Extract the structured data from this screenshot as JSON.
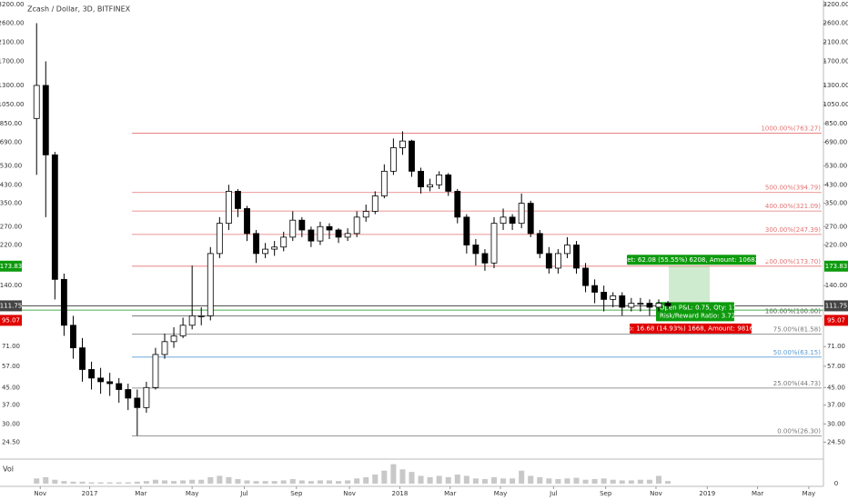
{
  "chart_data": {
    "type": "candlestick",
    "title": "Zcash / Dollar, 3D, BITFINEX",
    "log_scale": true,
    "ylim": [
      20.7,
      3365
    ],
    "xlim": [
      -4,
      86
    ],
    "yticks": [
      {
        "value": 3200,
        "label": "3200.00"
      },
      {
        "value": 2600,
        "label": "2600.00"
      },
      {
        "value": 2100,
        "label": "2100.00"
      },
      {
        "value": 1700,
        "label": "1700.00"
      },
      {
        "value": 1300,
        "label": "1300.00"
      },
      {
        "value": 1050,
        "label": "1050.00"
      },
      {
        "value": 850,
        "label": "850.00"
      },
      {
        "value": 690,
        "label": "690.00"
      },
      {
        "value": 530,
        "label": "530.00"
      },
      {
        "value": 430,
        "label": "430.00"
      },
      {
        "value": 350,
        "label": "350.00"
      },
      {
        "value": 270,
        "label": "270.00"
      },
      {
        "value": 220,
        "label": "220.00"
      },
      {
        "value": 140,
        "label": "140.00"
      },
      {
        "value": 71,
        "label": "71.00"
      },
      {
        "value": 57,
        "label": "57.00"
      },
      {
        "value": 45,
        "label": "45.00"
      },
      {
        "value": 37,
        "label": "37.00"
      },
      {
        "value": 30,
        "label": "30.00"
      },
      {
        "value": 24.5,
        "label": "24.50"
      }
    ],
    "xticks": [
      {
        "value": 0.4,
        "label": "Nov"
      },
      {
        "value": 5.8,
        "label": "2017"
      },
      {
        "value": 11.4,
        "label": "Mar"
      },
      {
        "value": 17,
        "label": "May"
      },
      {
        "value": 22.7,
        "label": "Jul"
      },
      {
        "value": 28.4,
        "label": "Sep"
      },
      {
        "value": 34.2,
        "label": "Nov"
      },
      {
        "value": 39.7,
        "label": "2018"
      },
      {
        "value": 45.2,
        "label": "Mar"
      },
      {
        "value": 50.7,
        "label": "May"
      },
      {
        "value": 56.5,
        "label": "Jul"
      },
      {
        "value": 62.2,
        "label": "Sep"
      },
      {
        "value": 67.7,
        "label": "Nov"
      },
      {
        "value": 73.3,
        "label": "2019"
      },
      {
        "value": 78.8,
        "label": "Mar"
      },
      {
        "value": 84.4,
        "label": "May"
      }
    ],
    "up_color": "#ffffff",
    "down_color": "#000000",
    "open": [
      900,
      1300,
      600,
      150,
      90,
      70,
      55,
      50,
      48,
      47,
      44,
      40,
      36,
      45,
      65,
      75,
      80,
      90,
      100,
      100,
      200,
      280,
      400,
      330,
      250,
      200,
      210,
      215,
      240,
      290,
      260,
      230,
      270,
      260,
      240,
      250,
      300,
      320,
      380,
      500,
      650,
      700,
      500,
      420,
      430,
      480,
      400,
      300,
      220,
      200,
      180,
      280,
      300,
      280,
      350,
      250,
      200,
      170,
      200,
      220,
      170,
      140,
      130,
      120,
      125,
      110,
      115,
      115,
      110,
      115
    ],
    "high": [
      2600,
      1700,
      620,
      160,
      100,
      78,
      60,
      56,
      53,
      50,
      47,
      44,
      48,
      70,
      82,
      88,
      98,
      175,
      110,
      215,
      300,
      430,
      410,
      340,
      260,
      225,
      230,
      255,
      320,
      300,
      270,
      285,
      280,
      265,
      265,
      320,
      345,
      400,
      540,
      720,
      780,
      710,
      520,
      460,
      500,
      490,
      410,
      310,
      235,
      210,
      300,
      330,
      310,
      390,
      360,
      260,
      215,
      210,
      240,
      230,
      180,
      150,
      140,
      130,
      130,
      122,
      122,
      120,
      120,
      118
    ],
    "low": [
      480,
      300,
      120,
      80,
      62,
      48,
      44,
      42,
      41,
      38,
      35,
      26.3,
      34,
      44,
      62,
      70,
      78,
      86,
      90,
      95,
      190,
      260,
      300,
      230,
      180,
      190,
      195,
      205,
      230,
      240,
      215,
      220,
      235,
      225,
      230,
      240,
      285,
      310,
      370,
      480,
      600,
      470,
      390,
      400,
      410,
      380,
      280,
      200,
      175,
      165,
      170,
      260,
      260,
      265,
      240,
      190,
      160,
      160,
      190,
      160,
      130,
      115,
      105,
      110,
      100,
      105,
      105,
      100,
      105,
      108
    ],
    "close": [
      1300,
      600,
      150,
      90,
      70,
      55,
      50,
      48,
      47,
      44,
      40,
      36,
      45,
      65,
      75,
      80,
      90,
      100,
      100,
      200,
      280,
      400,
      330,
      250,
      200,
      210,
      215,
      240,
      290,
      260,
      230,
      270,
      260,
      240,
      250,
      300,
      320,
      380,
      500,
      650,
      700,
      500,
      420,
      430,
      480,
      400,
      300,
      220,
      200,
      180,
      280,
      300,
      280,
      350,
      250,
      200,
      170,
      200,
      220,
      170,
      140,
      130,
      120,
      125,
      110,
      115,
      115,
      110,
      115,
      111.75
    ],
    "volume": {
      "label": "Vol",
      "color": "#c8c8c8",
      "ylim": [
        0,
        35
      ],
      "yticks": [
        0
      ],
      "values": [
        8,
        10,
        6,
        4,
        3,
        3,
        2,
        2,
        2,
        2,
        2,
        3,
        4,
        6,
        5,
        4,
        5,
        6,
        6,
        10,
        12,
        10,
        7,
        5,
        4,
        4,
        4,
        5,
        7,
        5,
        4,
        5,
        5,
        4,
        5,
        8,
        10,
        14,
        20,
        30,
        22,
        18,
        12,
        10,
        12,
        10,
        14,
        12,
        8,
        7,
        10,
        8,
        8,
        20,
        12,
        10,
        8,
        7,
        8,
        9,
        6,
        7,
        8,
        6,
        5,
        5,
        6,
        6,
        12,
        4
      ]
    },
    "fib_levels": [
      {
        "value": 763.27,
        "label": "1000.00%(763.27)",
        "color": "#e57373"
      },
      {
        "value": 394.79,
        "label": "500.00%(394.79)",
        "color": "#e57373"
      },
      {
        "value": 321.09,
        "label": "400.00%(321.09)",
        "color": "#e57373"
      },
      {
        "value": 247.39,
        "label": "300.00%(247.39)",
        "color": "#e57373"
      },
      {
        "value": 173.7,
        "label": "200.00%(173.70)",
        "color": "#e57373"
      },
      {
        "value": 100,
        "label": "100.00%(100.00)",
        "color": "#555555"
      },
      {
        "value": 81.58,
        "label": "75.00%(81.58)",
        "color": "#777777"
      },
      {
        "value": 63.15,
        "label": "50.00%(63.15)",
        "color": "#5b9bd5"
      },
      {
        "value": 44.73,
        "label": "25.00%(44.73)",
        "color": "#777777"
      },
      {
        "value": 26.3,
        "label": "0.00%(26.30)",
        "color": "#777777"
      }
    ],
    "horizontal_lines": [
      {
        "value": 106.5,
        "color": "#4caf50"
      }
    ],
    "position": {
      "entry": 111.75,
      "target": 173.83,
      "stop": 95.07,
      "target_label": "Target: 62.08 (55.55%) 6208, Amount: 10682.88",
      "pnl_label": "Open P&L: 0.75, Qty: 11",
      "ratio_label": "Risk/Reward Ratio: 3.72",
      "stop_label": "Stop: 16.68 (14.93%) 1668, Amount: 9816.52",
      "target_color": "#0d9b0d",
      "stop_color": "#e00000",
      "entry_color": "#444444"
    }
  }
}
